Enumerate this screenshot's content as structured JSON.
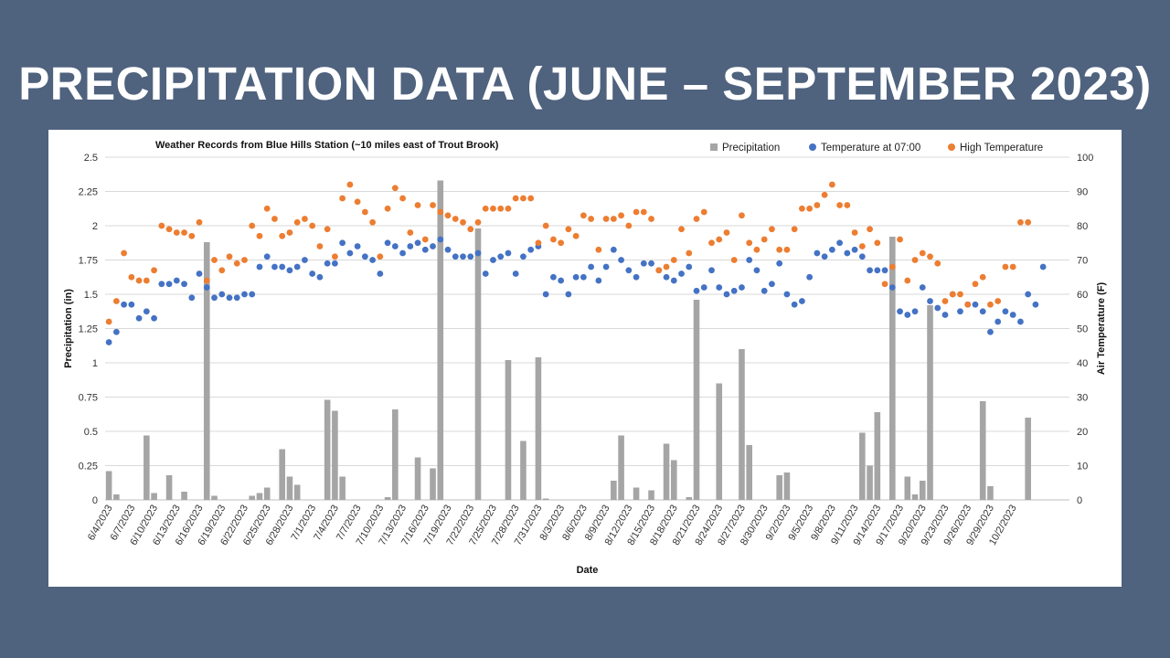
{
  "slide": {
    "title": "PRECIPITATION DATA (JUNE – SEPTEMBER 2023)"
  },
  "colors": {
    "background": "#4f627e",
    "precip": "#a5a5a5",
    "temp_am": "#4472c4",
    "temp_high": "#ed7d31",
    "grid": "#d9d9d9"
  },
  "chart_data": {
    "type": "bar",
    "title": "Weather Records from Blue Hills Station (~10 miles east of Trout Brook)",
    "xlabel": "Date",
    "ylabel": "Precipitation (in)",
    "y2label": "Air Temperature (F)",
    "ylim": [
      0,
      2.5
    ],
    "y2lim": [
      0,
      100
    ],
    "yticks": [
      "0",
      "0.25",
      "0.5",
      "0.75",
      "1",
      "1.25",
      "1.5",
      "1.75",
      "2",
      "2.25",
      "2.5"
    ],
    "y2ticks": [
      "0",
      "10",
      "20",
      "30",
      "40",
      "50",
      "60",
      "70",
      "80",
      "90",
      "100"
    ],
    "xticks": [
      "6/4/2023",
      "6/7/2023",
      "6/10/2023",
      "6/13/2023",
      "6/16/2023",
      "6/19/2023",
      "6/22/2023",
      "6/25/2023",
      "6/28/2023",
      "7/1/2023",
      "7/4/2023",
      "7/7/2023",
      "7/10/2023",
      "7/13/2023",
      "7/16/2023",
      "7/19/2023",
      "7/22/2023",
      "7/25/2023",
      "7/28/2023",
      "7/31/2023",
      "8/3/2023",
      "8/6/2023",
      "8/9/2023",
      "8/12/2023",
      "8/15/2023",
      "8/18/2023",
      "8/21/2023",
      "8/24/2023",
      "8/27/2023",
      "8/30/2023",
      "9/2/2023",
      "9/5/2023",
      "9/8/2023",
      "9/11/2023",
      "9/14/2023",
      "9/17/2023",
      "9/20/2023",
      "9/23/2023",
      "9/26/2023",
      "9/29/2023",
      "10/2/2023"
    ],
    "start_date": "6/4/2023",
    "legend": [
      "Precipitation",
      "Temperature at 07:00",
      "High Temperature"
    ],
    "legend_position": "top-right",
    "series": [
      {
        "name": "Precipitation",
        "kind": "bar",
        "axis": "left",
        "values": [
          0.21,
          0.04,
          0,
          0,
          0,
          0.47,
          0.05,
          0,
          0.18,
          0,
          0.06,
          0,
          0,
          1.88,
          0.03,
          0,
          0,
          0,
          0,
          0.03,
          0.05,
          0.09,
          0,
          0.37,
          0.17,
          0.11,
          0,
          0,
          0,
          0.73,
          0.65,
          0.17,
          0,
          0,
          0,
          0,
          0,
          0.02,
          0.66,
          0,
          0,
          0.31,
          0,
          0.23,
          2.33,
          0,
          0,
          0,
          0,
          1.98,
          0,
          0,
          0,
          1.02,
          0,
          0.43,
          0,
          1.04,
          0.01,
          0,
          0,
          0,
          0,
          0,
          0,
          0,
          0,
          0.14,
          0.47,
          0,
          0.09,
          0,
          0.07,
          0,
          0.41,
          0.29,
          0,
          0.02,
          1.46,
          0,
          0,
          0.85,
          0,
          0,
          1.1,
          0.4,
          0,
          0,
          0,
          0.18,
          0.2,
          0,
          0,
          0,
          0,
          0,
          0,
          0,
          0,
          0,
          0.49,
          0.25,
          0.64,
          0,
          1.92,
          0,
          0.17,
          0.04,
          0.14,
          1.42,
          0,
          0,
          0,
          0,
          0,
          0,
          0.72,
          0.1,
          0,
          0,
          0,
          0,
          0.6,
          0,
          0,
          0,
          0,
          0
        ]
      },
      {
        "name": "Temperature at 07:00",
        "kind": "scatter",
        "axis": "right",
        "values": [
          46,
          49,
          57,
          57,
          53,
          55,
          53,
          63,
          63,
          64,
          63,
          59,
          66,
          62,
          59,
          60,
          59,
          59,
          60,
          60,
          68,
          71,
          68,
          68,
          67,
          68,
          70,
          66,
          65,
          69,
          69,
          75,
          72,
          74,
          71,
          70,
          66,
          75,
          74,
          72,
          74,
          75,
          73,
          74,
          76,
          73,
          71,
          71,
          71,
          72,
          66,
          70,
          71,
          72,
          66,
          71,
          73,
          74,
          60,
          65,
          64,
          60,
          65,
          65,
          68,
          64,
          68,
          73,
          70,
          67,
          65,
          69,
          69,
          67,
          65,
          64,
          66,
          68,
          61,
          62,
          67,
          62,
          60,
          61,
          62,
          70,
          67,
          61,
          63,
          69,
          60,
          57,
          58,
          65,
          72,
          71,
          73,
          75,
          72,
          73,
          71,
          67,
          67,
          67,
          62,
          55,
          54,
          55,
          62,
          58,
          56,
          54,
          60,
          55,
          57,
          57,
          55,
          49,
          52,
          55,
          54,
          52,
          60,
          57,
          68
        ]
      },
      {
        "name": "High Temperature",
        "kind": "scatter",
        "axis": "right",
        "values": [
          52,
          58,
          72,
          65,
          64,
          64,
          67,
          80,
          79,
          78,
          78,
          77,
          81,
          64,
          70,
          67,
          71,
          69,
          70,
          80,
          77,
          85,
          82,
          77,
          78,
          81,
          82,
          80,
          74,
          79,
          71,
          88,
          92,
          87,
          84,
          81,
          71,
          85,
          91,
          88,
          78,
          86,
          76,
          86,
          84,
          83,
          82,
          81,
          79,
          81,
          85,
          85,
          85,
          85,
          88,
          88,
          88,
          75,
          80,
          76,
          75,
          79,
          77,
          83,
          82,
          73,
          82,
          82,
          83,
          80,
          84,
          84,
          82,
          67,
          68,
          70,
          79,
          72,
          82,
          84,
          75,
          76,
          78,
          70,
          83,
          75,
          73,
          76,
          79,
          73,
          73,
          79,
          85,
          85,
          86,
          89,
          92,
          86,
          86,
          78,
          74,
          79,
          75,
          63,
          68,
          76,
          64,
          70,
          72,
          71,
          69,
          58,
          60,
          60,
          57,
          63,
          65,
          57,
          58,
          68,
          68,
          81,
          81
        ]
      }
    ]
  }
}
